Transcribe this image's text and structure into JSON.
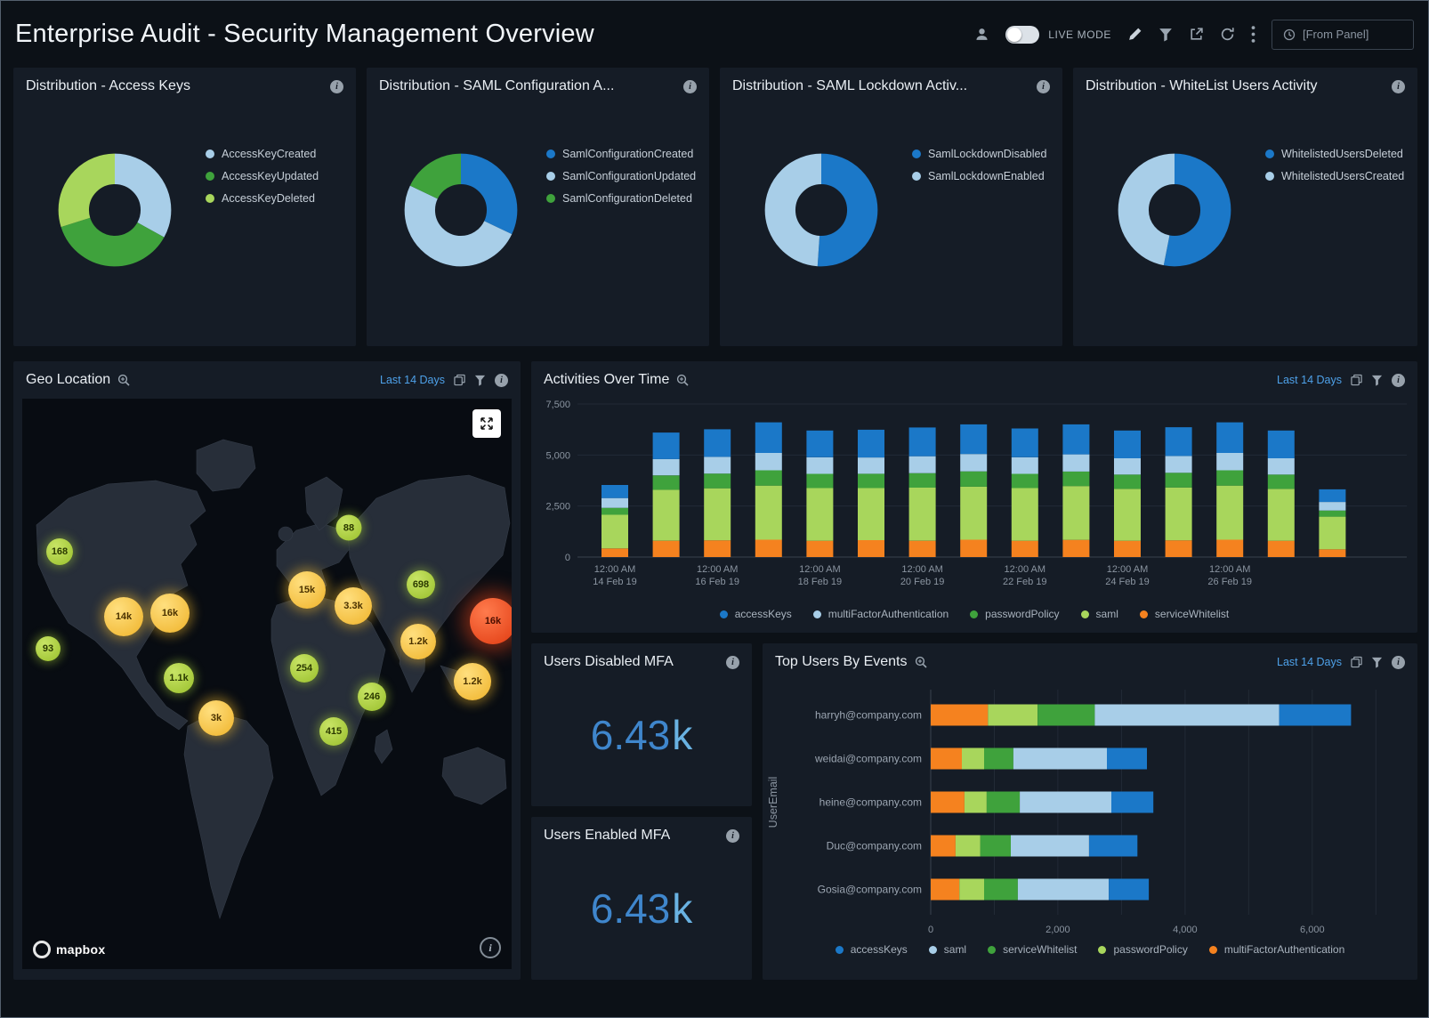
{
  "header": {
    "title": "Enterprise Audit - Security Management Overview",
    "live_mode": "LIVE MODE",
    "from_panel": "[From Panel]"
  },
  "time_range": "Last 14 Days",
  "kpis": [
    {
      "title": "Users Disabled MFA",
      "value": "6.43",
      "suffix": "k"
    },
    {
      "title": "Users Enabled MFA",
      "value": "6.43",
      "suffix": "k"
    }
  ],
  "map": {
    "title": "Geo Location",
    "attribution": "mapbox",
    "bubbles": [
      {
        "label": "168",
        "x": 42,
        "y": 172,
        "kind": "green",
        "size": 30
      },
      {
        "label": "88",
        "x": 367,
        "y": 145,
        "kind": "green",
        "size": 29
      },
      {
        "label": "15k",
        "x": 320,
        "y": 215,
        "kind": "yellow",
        "size": 42
      },
      {
        "label": "3.3k",
        "x": 372,
        "y": 233,
        "kind": "yellow",
        "size": 42
      },
      {
        "label": "698",
        "x": 448,
        "y": 209,
        "kind": "green",
        "size": 32
      },
      {
        "label": "14k",
        "x": 114,
        "y": 245,
        "kind": "yellow",
        "size": 44
      },
      {
        "label": "16k",
        "x": 166,
        "y": 241,
        "kind": "yellow",
        "size": 44
      },
      {
        "label": "16k",
        "x": 529,
        "y": 250,
        "kind": "red",
        "size": 52
      },
      {
        "label": "1.2k",
        "x": 445,
        "y": 273,
        "kind": "yellow",
        "size": 40
      },
      {
        "label": "93",
        "x": 29,
        "y": 281,
        "kind": "green",
        "size": 28
      },
      {
        "label": "254",
        "x": 317,
        "y": 303,
        "kind": "green",
        "size": 32
      },
      {
        "label": "1.1k",
        "x": 176,
        "y": 314,
        "kind": "green",
        "size": 34
      },
      {
        "label": "1.2k",
        "x": 506,
        "y": 318,
        "kind": "yellow",
        "size": 42
      },
      {
        "label": "246",
        "x": 393,
        "y": 335,
        "kind": "green",
        "size": 32
      },
      {
        "label": "3k",
        "x": 218,
        "y": 359,
        "kind": "yellow",
        "size": 40
      },
      {
        "label": "415",
        "x": 350,
        "y": 374,
        "kind": "green",
        "size": 32
      }
    ]
  },
  "chart_data": [
    {
      "id": "access-keys",
      "type": "pie",
      "title": "Distribution - Access Keys",
      "labels": [
        "AccessKeyCreated",
        "AccessKeyUpdated",
        "AccessKeyDeleted"
      ],
      "values": [
        33,
        37,
        30
      ],
      "colors": [
        "#A8CEE8",
        "#3FA23C",
        "#A8D65C"
      ]
    },
    {
      "id": "saml-config",
      "type": "pie",
      "title": "Distribution - SAML Configuration A...",
      "labels": [
        "SamlConfigurationCreated",
        "SamlConfigurationUpdated",
        "SamlConfigurationDeleted"
      ],
      "values": [
        32,
        50,
        18
      ],
      "colors": [
        "#1B78C8",
        "#A8CEE8",
        "#3FA23C"
      ]
    },
    {
      "id": "saml-lockdown",
      "type": "pie",
      "title": "Distribution - SAML Lockdown Activ...",
      "labels": [
        "SamlLockdownDisabled",
        "SamlLockdownEnabled"
      ],
      "values": [
        51,
        49
      ],
      "colors": [
        "#1B78C8",
        "#A8CEE8"
      ]
    },
    {
      "id": "whitelist-users",
      "type": "pie",
      "title": "Distribution - WhiteList Users Activity",
      "labels": [
        "WhitelistedUsersDeleted",
        "WhitelistedUsersCreated"
      ],
      "values": [
        53,
        47
      ],
      "colors": [
        "#1B78C8",
        "#A8CEE8"
      ]
    },
    {
      "id": "activities",
      "type": "bar",
      "stacked": true,
      "title": "Activities Over Time",
      "ylim": [
        0,
        7500
      ],
      "yticks": [
        0,
        2500,
        5000,
        7500
      ],
      "series_order_bottom_up": [
        "serviceWhitelist",
        "saml",
        "passwordPolicy",
        "multiFactorAuthentication",
        "accessKeys"
      ],
      "x_tick_labels": [
        {
          "index": 0,
          "time": "12:00 AM",
          "date": "14 Feb 19"
        },
        {
          "index": 2,
          "time": "12:00 AM",
          "date": "16 Feb 19"
        },
        {
          "index": 4,
          "time": "12:00 AM",
          "date": "18 Feb 19"
        },
        {
          "index": 6,
          "time": "12:00 AM",
          "date": "20 Feb 19"
        },
        {
          "index": 8,
          "time": "12:00 AM",
          "date": "22 Feb 19"
        },
        {
          "index": 10,
          "time": "12:00 AM",
          "date": "24 Feb 19"
        },
        {
          "index": 12,
          "time": "12:00 AM",
          "date": "26 Feb 19"
        }
      ],
      "series": [
        {
          "name": "accessKeys",
          "color": "#1B78C8",
          "values": [
            640,
            1300,
            1350,
            1500,
            1310,
            1360,
            1410,
            1450,
            1410,
            1470,
            1360,
            1410,
            1500,
            1360,
            620
          ]
        },
        {
          "name": "multiFactorAuthentication",
          "color": "#A8CEE8",
          "values": [
            480,
            800,
            820,
            850,
            810,
            800,
            830,
            850,
            810,
            840,
            800,
            820,
            850,
            800,
            420
          ]
        },
        {
          "name": "passwordPolicy",
          "color": "#3FA23C",
          "values": [
            340,
            700,
            720,
            750,
            700,
            700,
            710,
            750,
            700,
            710,
            700,
            720,
            750,
            700,
            300
          ]
        },
        {
          "name": "saml",
          "color": "#A8D65C",
          "values": [
            1650,
            2500,
            2550,
            2650,
            2580,
            2550,
            2600,
            2600,
            2580,
            2640,
            2540,
            2590,
            2650,
            2540,
            1600
          ]
        },
        {
          "name": "serviceWhitelist",
          "color": "#F5821F",
          "values": [
            420,
            800,
            820,
            850,
            800,
            830,
            800,
            850,
            800,
            840,
            800,
            820,
            850,
            800,
            380
          ]
        }
      ]
    },
    {
      "id": "top-users",
      "type": "bar",
      "orientation": "horizontal",
      "stacked": true,
      "title": "Top Users By Events",
      "ylabel": "UserEmail",
      "xlim": [
        0,
        7500
      ],
      "xticks": [
        0,
        2000,
        4000,
        6000
      ],
      "categories": [
        "harryh@company.com",
        "weidai@company.com",
        "heine@company.com",
        "Duc@company.com",
        "Gosia@company.com"
      ],
      "segment_order_left_to_right": [
        "multiFactorAuthentication",
        "passwordPolicy",
        "serviceWhitelist",
        "saml",
        "accessKeys"
      ],
      "series": [
        {
          "name": "accessKeys",
          "color": "#1B78C8",
          "values": [
            1130,
            630,
            660,
            760,
            630
          ]
        },
        {
          "name": "saml",
          "color": "#A8CEE8",
          "values": [
            2900,
            1470,
            1440,
            1230,
            1430
          ]
        },
        {
          "name": "serviceWhitelist",
          "color": "#3FA23C",
          "values": [
            900,
            460,
            520,
            480,
            530
          ]
        },
        {
          "name": "passwordPolicy",
          "color": "#A8D65C",
          "values": [
            780,
            350,
            350,
            390,
            390
          ]
        },
        {
          "name": "multiFactorAuthentication",
          "color": "#F5821F",
          "values": [
            900,
            490,
            530,
            390,
            450
          ]
        }
      ]
    }
  ]
}
